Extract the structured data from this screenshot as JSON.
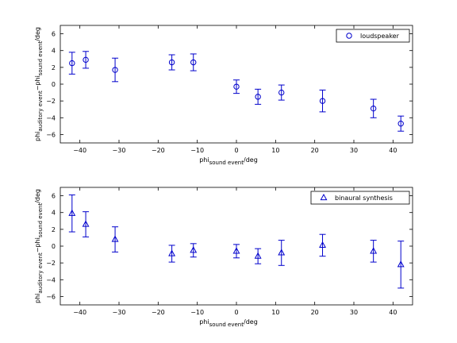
{
  "chart_data": [
    {
      "type": "scatter",
      "xlabel": "phi_sound event /deg",
      "ylabel": "phi_auditory event − phi_sound event /deg",
      "xlim": [
        -45,
        45
      ],
      "ylim": [
        -7,
        7
      ],
      "xticks": [
        -40,
        -30,
        -20,
        -10,
        0,
        10,
        20,
        30,
        40
      ],
      "yticks": [
        -6,
        -4,
        -2,
        0,
        2,
        4,
        6
      ],
      "legend_position": "top-right",
      "color": "#0000cc",
      "series": [
        {
          "name": "loudspeaker",
          "marker": "circle",
          "x": [
            -42,
            -38.5,
            -31,
            -16.5,
            -11,
            0,
            5.5,
            11.5,
            22,
            35,
            42
          ],
          "y": [
            2.5,
            2.9,
            1.7,
            2.6,
            2.6,
            -0.3,
            -1.5,
            -1.0,
            -2.0,
            -2.9,
            -4.7
          ],
          "err": [
            1.3,
            1.0,
            1.4,
            0.9,
            1.0,
            0.8,
            0.9,
            0.9,
            1.3,
            1.1,
            0.9
          ]
        }
      ]
    },
    {
      "type": "scatter",
      "xlabel": "phi_sound event /deg",
      "ylabel": "phi_auditory event − phi_sound event /deg",
      "xlim": [
        -45,
        45
      ],
      "ylim": [
        -7,
        7
      ],
      "xticks": [
        -40,
        -30,
        -20,
        -10,
        0,
        10,
        20,
        30,
        40
      ],
      "yticks": [
        -6,
        -4,
        -2,
        0,
        2,
        4,
        6
      ],
      "legend_position": "top-right",
      "color": "#0000cc",
      "series": [
        {
          "name": "binaural synthesis",
          "marker": "triangle",
          "x": [
            -42,
            -38.5,
            -31,
            -16.5,
            -11,
            0,
            5.5,
            11.5,
            22,
            35,
            42
          ],
          "y": [
            3.9,
            2.6,
            0.8,
            -0.9,
            -0.5,
            -0.6,
            -1.2,
            -0.8,
            0.1,
            -0.6,
            -2.2
          ],
          "err": [
            2.2,
            1.5,
            1.5,
            1.0,
            0.8,
            0.8,
            0.9,
            1.5,
            1.3,
            1.3,
            2.8
          ]
        }
      ]
    }
  ]
}
